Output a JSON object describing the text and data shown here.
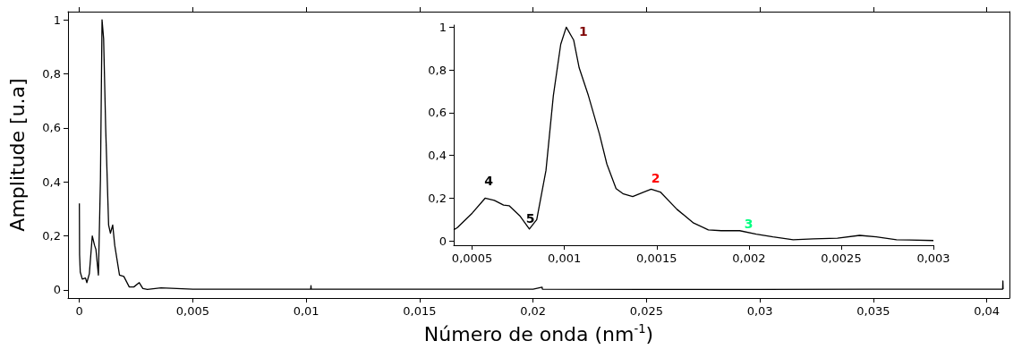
{
  "chart_data": [
    {
      "type": "line",
      "xlabel": "Número de onda (nm$^{-1}$)",
      "ylabel": "Amplitude [u.a]",
      "x": [
        0,
        1e-05,
        4e-05,
        0.00013,
        0.00027,
        0.00033,
        0.00044,
        0.00057,
        0.00067,
        0.00073,
        0.00084,
        0.00093,
        0.001,
        0.00107,
        0.00116,
        0.00129,
        0.00137,
        0.00147,
        0.00156,
        0.00177,
        0.00196,
        0.0022,
        0.0024,
        0.00264,
        0.0028,
        0.003,
        0.0036,
        0.005,
        0.0102,
        0.01021,
        0.01022,
        0.015,
        0.02,
        0.0204,
        0.02041,
        0.025,
        0.03,
        0.035,
        0.0407,
        0.04071,
        0.04072
      ],
      "series": [
        {
          "color": "#000000",
          "values": [
            0.32,
            0.13,
            0.066,
            0.04,
            0.044,
            0.027,
            0.06,
            0.2,
            0.165,
            0.15,
            0.055,
            0.41,
            1,
            0.93,
            0.6,
            0.24,
            0.21,
            0.24,
            0.165,
            0.055,
            0.05,
            0.011,
            0.011,
            0.027,
            0.005,
            0.002,
            0.008,
            0.003,
            0.003,
            0.016,
            0.003,
            0.003,
            0.003,
            0.01,
            0.003,
            0.002,
            0.002,
            0.003,
            0.003,
            0.033,
            0.003
          ]
        }
      ],
      "xlim": [
        -0.0005,
        0.041
      ],
      "ylim": [
        -0.03,
        1.03
      ],
      "xticks": [
        {
          "value": 0,
          "label": "0"
        },
        {
          "value": 0.005,
          "label": "0,005"
        },
        {
          "value": 0.01,
          "label": "0,01"
        },
        {
          "value": 0.015,
          "label": "0,015"
        },
        {
          "value": 0.02,
          "label": "0,02"
        },
        {
          "value": 0.025,
          "label": "0,025"
        },
        {
          "value": 0.03,
          "label": "0,03"
        },
        {
          "value": 0.035,
          "label": "0,035"
        },
        {
          "value": 0.04,
          "label": "0,04"
        }
      ],
      "yticks": [
        {
          "value": 0,
          "label": "0"
        },
        {
          "value": 0.2,
          "label": "0,2"
        },
        {
          "value": 0.4,
          "label": "0,4"
        },
        {
          "value": 0.6,
          "label": "0,6"
        },
        {
          "value": 0.8,
          "label": "0,8"
        },
        {
          "value": 1,
          "label": "1"
        }
      ],
      "grid": false,
      "marker": "none",
      "line_style": "solid"
    },
    {
      "type": "line",
      "x": [
        0.0004,
        0.00042,
        0.0005,
        0.00057,
        0.00062,
        0.00067,
        0.0007,
        0.00076,
        0.00081,
        0.00085,
        0.0009,
        0.00094,
        0.00098,
        0.00101,
        0.00105,
        0.00108,
        0.00113,
        0.00119,
        0.00123,
        0.00128,
        0.00132,
        0.00137,
        0.00143,
        0.00147,
        0.00152,
        0.00161,
        0.0017,
        0.00178,
        0.00185,
        0.00195,
        0.00204,
        0.00213,
        0.00224,
        0.00235,
        0.00248,
        0.0026,
        0.00269,
        0.0028,
        0.003
      ],
      "series": [
        {
          "color": "#000000",
          "values": [
            0.052,
            0.063,
            0.13,
            0.2,
            0.19,
            0.168,
            0.165,
            0.116,
            0.056,
            0.1,
            0.33,
            0.68,
            0.92,
            1.0,
            0.94,
            0.81,
            0.68,
            0.5,
            0.36,
            0.245,
            0.22,
            0.208,
            0.229,
            0.242,
            0.229,
            0.148,
            0.084,
            0.052,
            0.048,
            0.048,
            0.032,
            0.019,
            0.006,
            0.01,
            0.013,
            0.026,
            0.019,
            0.006,
            0.002
          ]
        }
      ],
      "xlim": [
        0.0004,
        0.003
      ],
      "ylim": [
        -0.02,
        1.01
      ],
      "xticks": [
        {
          "value": 0.0005,
          "label": "0,0005"
        },
        {
          "value": 0.001,
          "label": "0,001"
        },
        {
          "value": 0.0015,
          "label": "0,0015"
        },
        {
          "value": 0.002,
          "label": "0,002"
        },
        {
          "value": 0.0025,
          "label": "0,0025"
        },
        {
          "value": 0.003,
          "label": "0,003"
        }
      ],
      "yticks": [
        {
          "value": 0,
          "label": "0"
        },
        {
          "value": 0.2,
          "label": "0,2"
        },
        {
          "value": 0.4,
          "label": "0,4"
        },
        {
          "value": 0.6,
          "label": "0,6"
        },
        {
          "value": 0.8,
          "label": "0,8"
        },
        {
          "value": 1,
          "label": "1"
        }
      ],
      "annotations": [
        {
          "text": "1",
          "x": 0.00101,
          "y": 1.0
        },
        {
          "text": "2",
          "x": 0.00147,
          "y": 0.242
        },
        {
          "text": "3",
          "x": 0.00195,
          "y": 0.048
        },
        {
          "text": "4",
          "x": 0.00057,
          "y": 0.2
        },
        {
          "text": "5",
          "x": 0.00081,
          "y": 0.056
        }
      ],
      "grid": false,
      "marker": "none",
      "line_style": "solid"
    }
  ]
}
